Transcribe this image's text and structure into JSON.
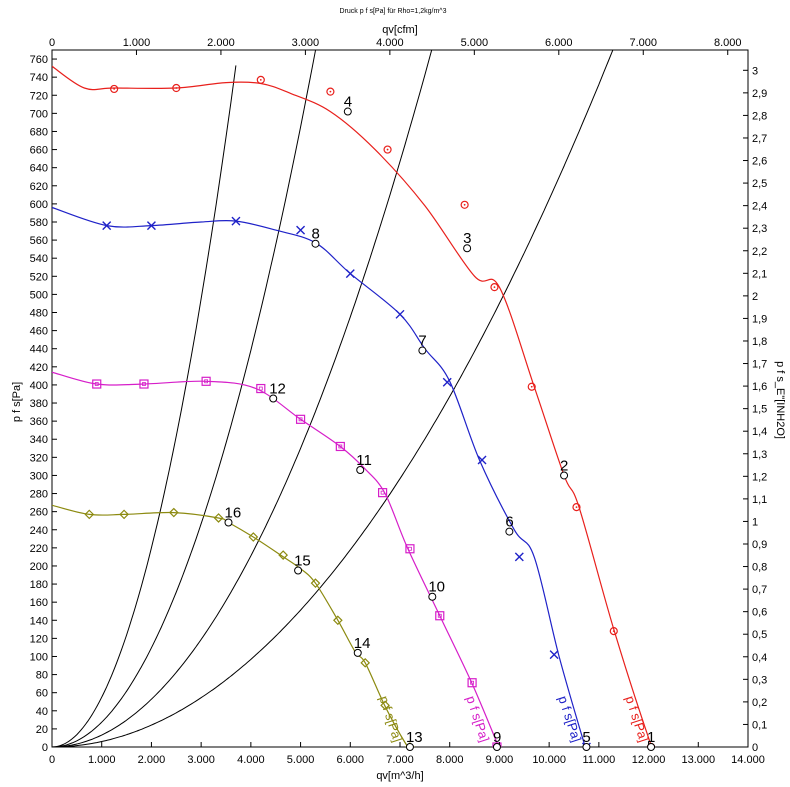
{
  "chart_data": {
    "type": "line",
    "title": "Druck p f s[Pa] für Rho=1,2kg/m^3",
    "xlabel": "qv[m^3/h]",
    "x2label": "qv[cfm]",
    "ylabel": "p f s[Pa]",
    "y2label": "p f s_E\"[INH2O]",
    "xlim": [
      0,
      14000
    ],
    "ylim": [
      0,
      770
    ],
    "x2lim": [
      0,
      8240
    ],
    "y2lim": [
      0,
      3.09
    ],
    "x_ticks": [
      0,
      1000,
      2000,
      3000,
      4000,
      5000,
      6000,
      7000,
      8000,
      9000,
      10000,
      11000,
      12000,
      13000,
      14000
    ],
    "x_tick_labels": [
      "0",
      "1.000",
      "2.000",
      "3.000",
      "4.000",
      "5.000",
      "6.000",
      "7.000",
      "8.000",
      "9.000",
      "10.000",
      "11.000",
      "12.000",
      "13.000",
      "14.000"
    ],
    "x2_ticks": [
      0,
      1000,
      2000,
      3000,
      4000,
      5000,
      6000,
      7000,
      8000
    ],
    "x2_tick_labels": [
      "0",
      "1.000",
      "2.000",
      "3.000",
      "4.000",
      "5.000",
      "6.000",
      "7.000",
      "8.000"
    ],
    "y_ticks": [
      0,
      20,
      40,
      60,
      80,
      100,
      120,
      140,
      160,
      180,
      200,
      220,
      240,
      260,
      280,
      300,
      320,
      340,
      360,
      380,
      400,
      420,
      440,
      460,
      480,
      500,
      520,
      540,
      560,
      580,
      600,
      620,
      640,
      660,
      680,
      700,
      720,
      740,
      760
    ],
    "y2_ticks": [
      0,
      0.1,
      0.2,
      0.3,
      0.4,
      0.5,
      0.6,
      0.7,
      0.8,
      0.9,
      1,
      1.1,
      1.2,
      1.3,
      1.4,
      1.5,
      1.6,
      1.7,
      1.8,
      1.9,
      2,
      2.1,
      2.2,
      2.3,
      2.4,
      2.5,
      2.6,
      2.7,
      2.8,
      2.9,
      3
    ],
    "y2_tick_labels": [
      "0",
      "0,1",
      "0,2",
      "0,3",
      "0,4",
      "0,5",
      "0,6",
      "0,7",
      "0,8",
      "0,9",
      "1",
      "1,1",
      "1,2",
      "1,3",
      "1,4",
      "1,5",
      "1,6",
      "1,7",
      "1,8",
      "1,9",
      "2",
      "2,1",
      "2,2",
      "2,3",
      "2,4",
      "2,5",
      "2,6",
      "2,7",
      "2,8",
      "2,9",
      "3"
    ],
    "grid": false,
    "series": [
      {
        "name": "p f s[Pa]",
        "color": "#e8201c",
        "marker": "circle",
        "x": [
          0,
          650,
          1250,
          2500,
          3500,
          4200,
          4800,
          5600,
          6500,
          7500,
          8500,
          9000,
          9700,
          10300,
          10600,
          11300,
          12000,
          12100
        ],
        "y": [
          752,
          728,
          728,
          728,
          734,
          733,
          722,
          702,
          660,
          598,
          520,
          508,
          398,
          300,
          265,
          130,
          10,
          0
        ],
        "marker_x": [
          1250,
          2500,
          4200,
          5600,
          6750,
          8300,
          8900,
          9650,
          10550,
          11300,
          12050
        ],
        "marker_y": [
          727,
          728,
          737,
          724,
          660,
          599,
          508,
          398,
          265,
          128,
          0
        ],
        "label_x": 11950,
        "label_y": 0
      },
      {
        "name": "p f s[Pa]",
        "color": "#1f22c8",
        "marker": "x",
        "x": [
          0,
          1100,
          2000,
          3000,
          3700,
          4500,
          5300,
          6000,
          7000,
          7500,
          8000,
          8600,
          9300,
          9700,
          10200,
          10700,
          10750
        ],
        "y": [
          596,
          576,
          576,
          580,
          581,
          571,
          557,
          523,
          478,
          440,
          404,
          317,
          240,
          210,
          100,
          5,
          0
        ],
        "marker_x": [
          1100,
          2000,
          3700,
          5000,
          6000,
          7000,
          7950,
          8650,
          9400,
          10100,
          10750
        ],
        "marker_y": [
          576,
          576,
          581,
          571,
          523,
          478,
          403,
          317,
          210,
          102,
          0
        ],
        "label_x": 10600,
        "label_y": 0
      },
      {
        "name": "p f s[Pa]",
        "color": "#d61ec9",
        "marker": "square",
        "x": [
          0,
          900,
          1850,
          3100,
          4100,
          5000,
          5800,
          6300,
          6700,
          7150,
          7800,
          8450,
          8950,
          9000
        ],
        "y": [
          414,
          401,
          401,
          404,
          396,
          362,
          332,
          307,
          280,
          220,
          145,
          70,
          5,
          0
        ],
        "marker_x": [
          900,
          1850,
          3100,
          4200,
          5000,
          5800,
          6650,
          7200,
          7800,
          8450,
          8950
        ],
        "marker_y": [
          401,
          401,
          404,
          396,
          362,
          332,
          281,
          219,
          145,
          71,
          0
        ],
        "label_x": 8750,
        "label_y": 0
      },
      {
        "name": "p f s[Pa]",
        "color": "#8c8a10",
        "marker": "diamond",
        "x": [
          0,
          750,
          1450,
          2450,
          3350,
          3550,
          4050,
          4600,
          5000,
          5300,
          5750,
          6100,
          6300,
          6700,
          7100,
          7200
        ],
        "y": [
          267,
          257,
          257,
          259,
          253,
          248,
          232,
          212,
          197,
          181,
          140,
          105,
          93,
          45,
          5,
          0
        ],
        "marker_x": [
          750,
          1450,
          2450,
          3350,
          4050,
          4650,
          5300,
          5750,
          6300,
          6700,
          7200
        ],
        "marker_y": [
          257,
          257,
          259,
          253,
          232,
          212,
          181,
          140,
          93,
          46,
          0
        ],
        "label_x": 7000,
        "label_y": 0
      }
    ],
    "system_curves": [
      {
        "name": "system-curve-1",
        "k": 5.5e-05,
        "x_max": 12250
      },
      {
        "name": "system-curve-2",
        "k": 2.74e-05,
        "x_max": 13050
      },
      {
        "name": "system-curve-3",
        "k": 1.32e-05,
        "x_max": 14000
      },
      {
        "name": "system-curve-4",
        "k": 6.05e-06,
        "x_max": 14000
      }
    ],
    "operating_points": [
      {
        "label": "1",
        "x": 12050,
        "y": 0
      },
      {
        "label": "2",
        "x": 10300,
        "y": 300
      },
      {
        "label": "3",
        "x": 8350,
        "y": 551
      },
      {
        "label": "4",
        "x": 5950,
        "y": 702
      },
      {
        "label": "5",
        "x": 10750,
        "y": 0
      },
      {
        "label": "6",
        "x": 9200,
        "y": 238
      },
      {
        "label": "7",
        "x": 7450,
        "y": 438
      },
      {
        "label": "8",
        "x": 5300,
        "y": 556
      },
      {
        "label": "9",
        "x": 8950,
        "y": 0
      },
      {
        "label": "10",
        "x": 7650,
        "y": 166
      },
      {
        "label": "11",
        "x": 6200,
        "y": 306
      },
      {
        "label": "12",
        "x": 4450,
        "y": 385
      },
      {
        "label": "13",
        "x": 7200,
        "y": 0
      },
      {
        "label": "14",
        "x": 6150,
        "y": 104
      },
      {
        "label": "15",
        "x": 4950,
        "y": 195
      },
      {
        "label": "16",
        "x": 3550,
        "y": 248
      }
    ]
  }
}
